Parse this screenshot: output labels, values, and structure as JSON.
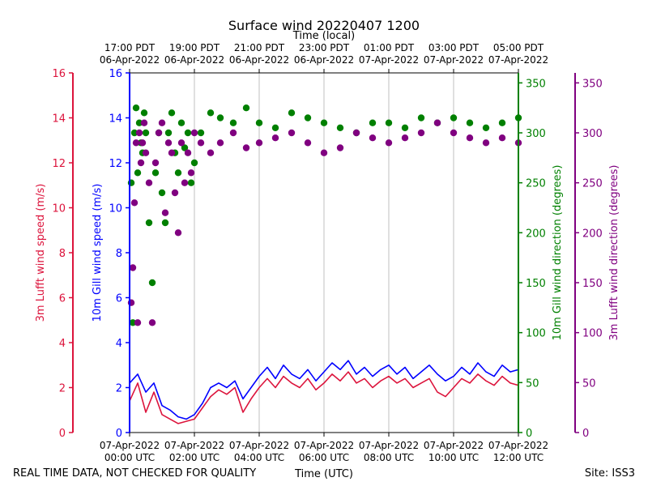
{
  "chart_data": {
    "type": "line",
    "title": "Surface wind 20220407 1200",
    "top_axis_label": "Time (local)",
    "xlabel": "Time (UTC)",
    "footer_left": "REAL TIME DATA, NOT CHECKED FOR QUALITY",
    "footer_right": "Site: ISS3",
    "x_range_hours_utc": [
      0,
      12
    ],
    "bottom_ticks": [
      {
        "hour": 0,
        "line1": "07-Apr-2022",
        "line2": "00:00 UTC"
      },
      {
        "hour": 2,
        "line1": "07-Apr-2022",
        "line2": "02:00 UTC"
      },
      {
        "hour": 4,
        "line1": "07-Apr-2022",
        "line2": "04:00 UTC"
      },
      {
        "hour": 6,
        "line1": "07-Apr-2022",
        "line2": "06:00 UTC"
      },
      {
        "hour": 8,
        "line1": "07-Apr-2022",
        "line2": "08:00 UTC"
      },
      {
        "hour": 10,
        "line1": "07-Apr-2022",
        "line2": "10:00 UTC"
      },
      {
        "hour": 12,
        "line1": "07-Apr-2022",
        "line2": "12:00 UTC"
      }
    ],
    "top_ticks": [
      {
        "hour": 0,
        "line1": "17:00 PDT",
        "line2": "06-Apr-2022"
      },
      {
        "hour": 2,
        "line1": "19:00 PDT",
        "line2": "06-Apr-2022"
      },
      {
        "hour": 4,
        "line1": "21:00 PDT",
        "line2": "06-Apr-2022"
      },
      {
        "hour": 6,
        "line1": "23:00 PDT",
        "line2": "06-Apr-2022"
      },
      {
        "hour": 8,
        "line1": "01:00 PDT",
        "line2": "07-Apr-2022"
      },
      {
        "hour": 10,
        "line1": "03:00 PDT",
        "line2": "07-Apr-2022"
      },
      {
        "hour": 12,
        "line1": "05:00 PDT",
        "line2": "07-Apr-2022"
      }
    ],
    "axes": [
      {
        "id": "lufft_speed",
        "label": "3m Lufft wind speed (m/s)",
        "color": "#dc143c",
        "range": [
          0,
          16
        ],
        "ticks": [
          0,
          2,
          4,
          6,
          8,
          10,
          12,
          14,
          16
        ]
      },
      {
        "id": "gill_speed",
        "label": "10m Gill wind speed (m/s)",
        "color": "#0000ff",
        "range": [
          0,
          16
        ],
        "ticks": [
          0,
          2,
          4,
          6,
          8,
          10,
          12,
          14,
          16
        ]
      },
      {
        "id": "gill_dir",
        "label": "10m Gill wind direction (degrees)",
        "color": "#008000",
        "range": [
          0,
          360
        ],
        "ticks": [
          0,
          50,
          100,
          150,
          200,
          250,
          300,
          350
        ]
      },
      {
        "id": "lufft_dir",
        "label": "3m Lufft wind direction (degrees)",
        "color": "#800080",
        "range": [
          0,
          360
        ],
        "ticks": [
          0,
          50,
          100,
          150,
          200,
          250,
          300,
          350
        ]
      }
    ],
    "series": [
      {
        "name": "10m Gill wind speed",
        "kind": "line",
        "color": "#0000ff",
        "axis": "gill_speed",
        "x": [
          0,
          0.25,
          0.5,
          0.75,
          1.0,
          1.25,
          1.5,
          1.75,
          2.0,
          2.25,
          2.5,
          2.75,
          3.0,
          3.25,
          3.5,
          3.75,
          4.0,
          4.25,
          4.5,
          4.75,
          5.0,
          5.25,
          5.5,
          5.75,
          6.0,
          6.25,
          6.5,
          6.75,
          7.0,
          7.25,
          7.5,
          7.75,
          8.0,
          8.25,
          8.5,
          8.75,
          9.0,
          9.25,
          9.5,
          9.75,
          10.0,
          10.25,
          10.5,
          10.75,
          11.0,
          11.25,
          11.5,
          11.75,
          12.0
        ],
        "y": [
          2.2,
          2.6,
          1.8,
          2.2,
          1.2,
          1.0,
          0.7,
          0.6,
          0.8,
          1.3,
          2.0,
          2.2,
          2.0,
          2.3,
          1.5,
          2.0,
          2.5,
          2.9,
          2.4,
          3.0,
          2.6,
          2.4,
          2.8,
          2.3,
          2.7,
          3.1,
          2.8,
          3.2,
          2.6,
          2.9,
          2.5,
          2.8,
          3.0,
          2.6,
          2.9,
          2.4,
          2.7,
          3.0,
          2.6,
          2.3,
          2.5,
          2.9,
          2.6,
          3.1,
          2.7,
          2.5,
          3.0,
          2.7,
          2.8
        ]
      },
      {
        "name": "3m Lufft wind speed",
        "kind": "line",
        "color": "#dc143c",
        "axis": "lufft_speed",
        "x": [
          0,
          0.25,
          0.5,
          0.75,
          1.0,
          1.25,
          1.5,
          1.75,
          2.0,
          2.25,
          2.5,
          2.75,
          3.0,
          3.25,
          3.5,
          3.75,
          4.0,
          4.25,
          4.5,
          4.75,
          5.0,
          5.25,
          5.5,
          5.75,
          6.0,
          6.25,
          6.5,
          6.75,
          7.0,
          7.25,
          7.5,
          7.75,
          8.0,
          8.25,
          8.5,
          8.75,
          9.0,
          9.25,
          9.5,
          9.75,
          10.0,
          10.25,
          10.5,
          10.75,
          11.0,
          11.25,
          11.5,
          11.75,
          12.0
        ],
        "y": [
          1.4,
          2.2,
          0.9,
          1.8,
          0.8,
          0.6,
          0.4,
          0.5,
          0.6,
          1.1,
          1.6,
          1.9,
          1.7,
          2.0,
          0.9,
          1.5,
          2.0,
          2.4,
          2.0,
          2.5,
          2.2,
          2.0,
          2.4,
          1.9,
          2.2,
          2.6,
          2.3,
          2.7,
          2.2,
          2.4,
          2.0,
          2.3,
          2.5,
          2.2,
          2.4,
          2.0,
          2.2,
          2.4,
          1.8,
          1.6,
          2.0,
          2.4,
          2.2,
          2.6,
          2.3,
          2.1,
          2.5,
          2.2,
          2.1
        ]
      },
      {
        "name": "10m Gill wind direction",
        "kind": "scatter",
        "color": "#008000",
        "axis": "gill_dir",
        "x": [
          0.05,
          0.1,
          0.15,
          0.2,
          0.25,
          0.3,
          0.35,
          0.4,
          0.45,
          0.5,
          0.6,
          0.7,
          0.8,
          0.9,
          1.0,
          1.1,
          1.2,
          1.3,
          1.4,
          1.5,
          1.6,
          1.7,
          1.8,
          1.9,
          2.0,
          2.2,
          2.5,
          2.8,
          3.2,
          3.6,
          4.0,
          4.5,
          5.0,
          5.5,
          6.0,
          6.5,
          7.0,
          7.5,
          8.0,
          8.5,
          9.0,
          9.5,
          10.0,
          10.5,
          11.0,
          11.5,
          12.0
        ],
        "y": [
          250,
          110,
          300,
          325,
          260,
          310,
          290,
          280,
          320,
          300,
          210,
          150,
          260,
          300,
          240,
          210,
          300,
          320,
          280,
          260,
          310,
          285,
          300,
          250,
          270,
          300,
          320,
          315,
          310,
          325,
          310,
          305,
          320,
          315,
          310,
          305,
          300,
          310,
          310,
          305,
          315,
          310,
          315,
          310,
          305,
          310,
          315
        ]
      },
      {
        "name": "3m Lufft wind direction",
        "kind": "scatter",
        "color": "#800080",
        "axis": "lufft_dir",
        "x": [
          0.05,
          0.1,
          0.15,
          0.2,
          0.25,
          0.3,
          0.35,
          0.4,
          0.45,
          0.5,
          0.6,
          0.7,
          0.8,
          0.9,
          1.0,
          1.1,
          1.2,
          1.3,
          1.4,
          1.5,
          1.6,
          1.7,
          1.8,
          1.9,
          2.0,
          2.2,
          2.5,
          2.8,
          3.2,
          3.6,
          4.0,
          4.5,
          5.0,
          5.5,
          6.0,
          6.5,
          7.0,
          7.5,
          8.0,
          8.5,
          9.0,
          9.5,
          10.0,
          10.5,
          11.0,
          11.5,
          12.0
        ],
        "y": [
          130,
          165,
          230,
          290,
          110,
          300,
          270,
          290,
          310,
          280,
          250,
          110,
          270,
          300,
          310,
          220,
          290,
          280,
          240,
          200,
          290,
          250,
          280,
          260,
          300,
          290,
          280,
          290,
          300,
          285,
          290,
          295,
          300,
          290,
          280,
          285,
          300,
          295,
          290,
          295,
          300,
          310,
          300,
          295,
          290,
          295,
          290
        ]
      }
    ]
  }
}
